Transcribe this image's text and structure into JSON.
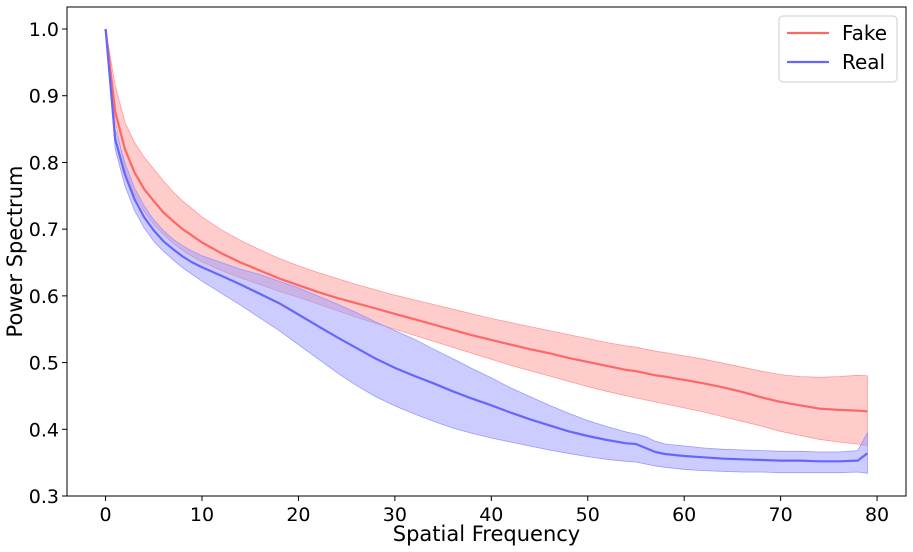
{
  "chart_data": {
    "type": "line",
    "title": "",
    "xlabel": "Spatial Frequency",
    "ylabel": "Power Spectrum",
    "xlim": [
      -4,
      83
    ],
    "ylim": [
      0.3,
      1.033
    ],
    "xticks": [
      0,
      10,
      20,
      30,
      40,
      50,
      60,
      70,
      80
    ],
    "yticks": [
      0.3,
      0.4,
      0.5,
      0.6,
      0.7,
      0.8,
      0.9,
      1.0
    ],
    "xtick_labels": [
      "0",
      "10",
      "20",
      "30",
      "40",
      "50",
      "60",
      "70",
      "80"
    ],
    "ytick_labels": [
      "0.3",
      "0.4",
      "0.5",
      "0.6",
      "0.7",
      "0.8",
      "0.9",
      "1.0"
    ],
    "grid": false,
    "legend_position": "top-right",
    "x": [
      0,
      1,
      2,
      3,
      4,
      5,
      6,
      7,
      8,
      9,
      10,
      12,
      14,
      16,
      18,
      20,
      22,
      24,
      26,
      28,
      30,
      32,
      34,
      36,
      38,
      40,
      42,
      44,
      46,
      48,
      50,
      52,
      54,
      55,
      56,
      57,
      58,
      60,
      62,
      64,
      66,
      68,
      70,
      72,
      74,
      76,
      78,
      79
    ],
    "series": [
      {
        "name": "Fake",
        "color": "#ff6666",
        "fill_color": "#ff9999",
        "values": [
          1.0,
          0.876,
          0.82,
          0.785,
          0.76,
          0.742,
          0.725,
          0.712,
          0.7,
          0.69,
          0.68,
          0.664,
          0.65,
          0.638,
          0.626,
          0.616,
          0.606,
          0.597,
          0.589,
          0.581,
          0.573,
          0.565,
          0.557,
          0.549,
          0.541,
          0.534,
          0.527,
          0.52,
          0.514,
          0.507,
          0.501,
          0.495,
          0.489,
          0.487,
          0.484,
          0.481,
          0.479,
          0.474,
          0.469,
          0.463,
          0.456,
          0.448,
          0.441,
          0.436,
          0.431,
          0.429,
          0.428,
          0.427
        ],
        "lower": [
          1.0,
          0.862,
          0.79,
          0.752,
          0.727,
          0.707,
          0.692,
          0.679,
          0.668,
          0.659,
          0.651,
          0.638,
          0.627,
          0.617,
          0.607,
          0.598,
          0.588,
          0.578,
          0.568,
          0.559,
          0.55,
          0.541,
          0.532,
          0.523,
          0.514,
          0.505,
          0.496,
          0.488,
          0.48,
          0.472,
          0.464,
          0.457,
          0.45,
          0.447,
          0.444,
          0.441,
          0.438,
          0.432,
          0.426,
          0.419,
          0.412,
          0.405,
          0.397,
          0.391,
          0.385,
          0.381,
          0.378,
          0.375
        ],
        "upper": [
          1.0,
          0.915,
          0.86,
          0.83,
          0.808,
          0.79,
          0.772,
          0.756,
          0.742,
          0.73,
          0.718,
          0.699,
          0.683,
          0.669,
          0.656,
          0.645,
          0.635,
          0.626,
          0.617,
          0.609,
          0.601,
          0.594,
          0.587,
          0.58,
          0.573,
          0.566,
          0.56,
          0.554,
          0.548,
          0.542,
          0.536,
          0.53,
          0.525,
          0.523,
          0.52,
          0.517,
          0.515,
          0.51,
          0.505,
          0.499,
          0.493,
          0.487,
          0.482,
          0.479,
          0.478,
          0.479,
          0.481,
          0.48
        ]
      },
      {
        "name": "Real",
        "color": "#6666ff",
        "fill_color": "#9999ff",
        "values": [
          1.0,
          0.835,
          0.782,
          0.745,
          0.718,
          0.698,
          0.682,
          0.67,
          0.659,
          0.65,
          0.643,
          0.63,
          0.617,
          0.603,
          0.589,
          0.572,
          0.555,
          0.538,
          0.522,
          0.506,
          0.492,
          0.48,
          0.469,
          0.457,
          0.446,
          0.436,
          0.425,
          0.415,
          0.406,
          0.397,
          0.39,
          0.384,
          0.379,
          0.378,
          0.372,
          0.366,
          0.363,
          0.36,
          0.358,
          0.356,
          0.355,
          0.354,
          0.353,
          0.353,
          0.352,
          0.352,
          0.353,
          0.364
        ],
        "lower": [
          1.0,
          0.82,
          0.765,
          0.728,
          0.702,
          0.682,
          0.667,
          0.654,
          0.642,
          0.632,
          0.622,
          0.604,
          0.586,
          0.567,
          0.548,
          0.527,
          0.506,
          0.485,
          0.466,
          0.449,
          0.435,
          0.423,
          0.412,
          0.402,
          0.394,
          0.387,
          0.381,
          0.375,
          0.369,
          0.364,
          0.359,
          0.355,
          0.352,
          0.351,
          0.348,
          0.345,
          0.343,
          0.34,
          0.338,
          0.337,
          0.336,
          0.336,
          0.335,
          0.335,
          0.335,
          0.335,
          0.336,
          0.334
        ],
        "upper": [
          1.0,
          0.85,
          0.8,
          0.762,
          0.735,
          0.714,
          0.698,
          0.685,
          0.675,
          0.667,
          0.66,
          0.65,
          0.64,
          0.632,
          0.622,
          0.612,
          0.6,
          0.588,
          0.575,
          0.561,
          0.548,
          0.535,
          0.52,
          0.506,
          0.491,
          0.477,
          0.462,
          0.449,
          0.436,
          0.424,
          0.413,
          0.404,
          0.396,
          0.393,
          0.389,
          0.382,
          0.378,
          0.375,
          0.372,
          0.37,
          0.369,
          0.368,
          0.367,
          0.367,
          0.366,
          0.366,
          0.368,
          0.395
        ]
      }
    ]
  }
}
